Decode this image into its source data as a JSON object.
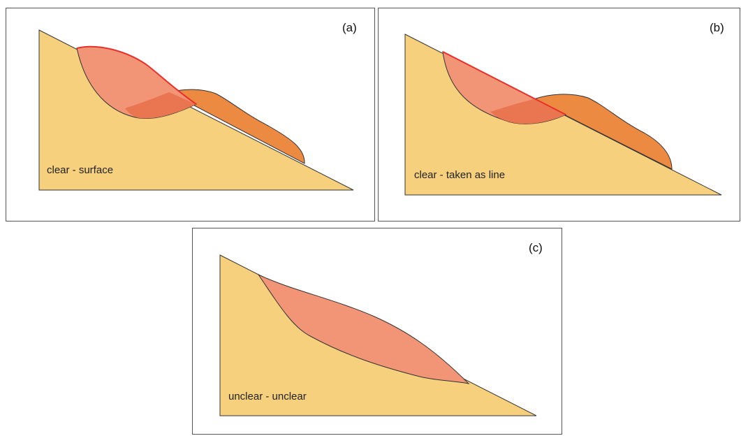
{
  "colors": {
    "ground": "#f6d07c",
    "slide_body": "#f29577",
    "deposit": "#ec8a42",
    "overlap": "#ea7651",
    "rupture_line": "#e8302a",
    "outline": "#333333"
  },
  "panels": [
    {
      "label": "(a)",
      "caption": "clear - surface"
    },
    {
      "label": "(b)",
      "caption": "clear - taken as line"
    },
    {
      "label": "(c)",
      "caption": "unclear - unclear"
    }
  ]
}
